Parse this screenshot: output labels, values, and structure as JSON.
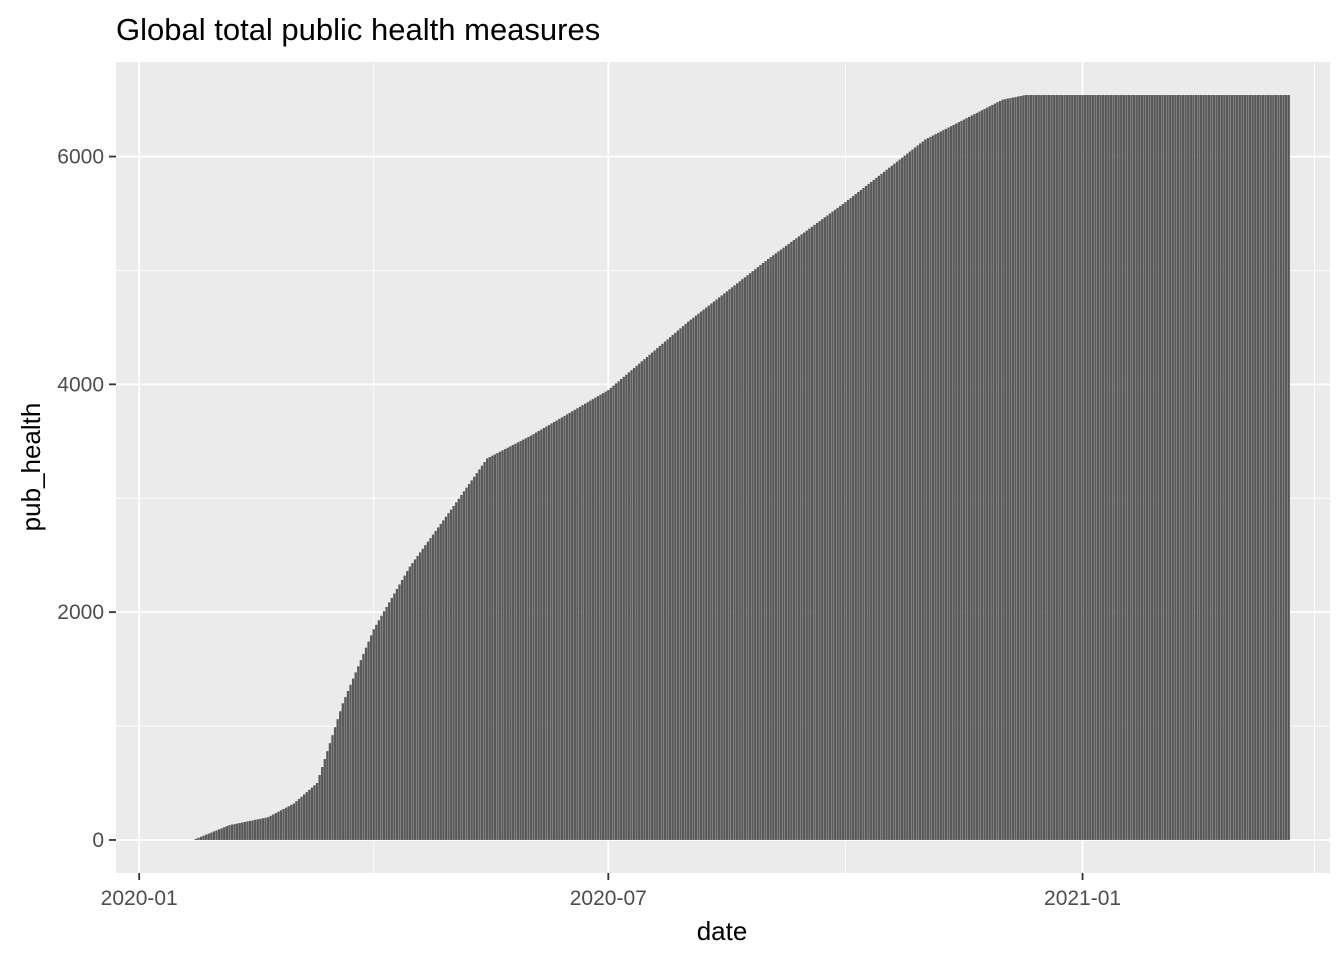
{
  "chart_data": {
    "type": "bar",
    "title": "Global total public health measures",
    "xlabel": "date",
    "ylabel": "pub_health",
    "x_start": "2020-01-23",
    "x_end": "2021-03-22",
    "xlim": [
      "2019-12-23",
      "2021-04-07"
    ],
    "ylim": [
      -290,
      6830
    ],
    "x_ticks": [
      {
        "date": "2020-01-01",
        "label": "2020-01"
      },
      {
        "date": "2020-07-01",
        "label": "2020-07"
      },
      {
        "date": "2021-01-01",
        "label": "2021-01"
      }
    ],
    "x_minor_ticks": [
      "2020-04-01",
      "2020-10-01",
      "2021-04-01"
    ],
    "y_ticks": [
      {
        "value": 0,
        "label": "0"
      },
      {
        "value": 2000,
        "label": "2000"
      },
      {
        "value": 4000,
        "label": "4000"
      },
      {
        "value": 6000,
        "label": "6000"
      }
    ],
    "y_minor_ticks": [
      1000,
      3000,
      5000
    ],
    "cumulative_profile": [
      {
        "date": "2020-01-23",
        "value": 10
      },
      {
        "date": "2020-02-05",
        "value": 130
      },
      {
        "date": "2020-02-20",
        "value": 200
      },
      {
        "date": "2020-03-01",
        "value": 320
      },
      {
        "date": "2020-03-10",
        "value": 500
      },
      {
        "date": "2020-03-20",
        "value": 1200
      },
      {
        "date": "2020-04-01",
        "value": 1850
      },
      {
        "date": "2020-04-15",
        "value": 2400
      },
      {
        "date": "2020-05-01",
        "value": 2900
      },
      {
        "date": "2020-05-15",
        "value": 3350
      },
      {
        "date": "2020-06-01",
        "value": 3550
      },
      {
        "date": "2020-07-01",
        "value": 3950
      },
      {
        "date": "2020-08-01",
        "value": 4550
      },
      {
        "date": "2020-09-01",
        "value": 5100
      },
      {
        "date": "2020-10-01",
        "value": 5600
      },
      {
        "date": "2020-11-01",
        "value": 6150
      },
      {
        "date": "2020-12-01",
        "value": 6500
      },
      {
        "date": "2020-12-10",
        "value": 6540
      },
      {
        "date": "2021-03-22",
        "value": 6540
      }
    ],
    "bar_color": "#595959",
    "panel_background": "#ebebeb",
    "grid": true,
    "grid_color": "#ffffff",
    "legend": "none"
  }
}
